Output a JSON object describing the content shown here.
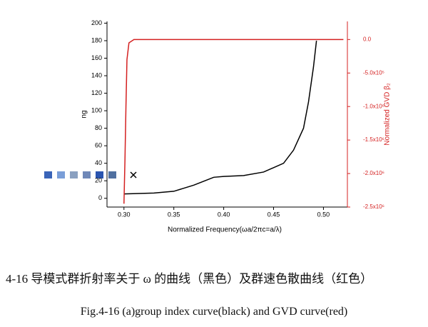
{
  "chart_data": {
    "type": "line",
    "xlabel": "Normalized Frequency(ωa/2πc=a/λ)",
    "ylabel": "ng",
    "y2label": "Normalized GVD β₂",
    "xlim": [
      0.283,
      0.524
    ],
    "xticks": [
      {
        "value": 0.3,
        "label": "0.30"
      },
      {
        "value": 0.35,
        "label": "0.35"
      },
      {
        "value": 0.4,
        "label": "0.40"
      },
      {
        "value": 0.45,
        "label": "0.45"
      },
      {
        "value": 0.5,
        "label": "0.50"
      }
    ],
    "ylim": [
      -10,
      202
    ],
    "yticks": [
      0,
      20,
      40,
      60,
      80,
      100,
      120,
      140,
      160,
      180,
      200
    ],
    "y2lim": [
      -2500000,
      270000
    ],
    "y2ticks": [
      {
        "value": 0,
        "label": "0.0"
      },
      {
        "value": -500000,
        "label": "-5.0x10⁵"
      },
      {
        "value": -1000000,
        "label": "-1.0x10⁶"
      },
      {
        "value": -1500000,
        "label": "-1.5x10⁶"
      },
      {
        "value": -2000000,
        "label": "-2.0x10⁶"
      },
      {
        "value": -2500000,
        "label": "-2.5x10⁶"
      }
    ],
    "y2color": "#d42020",
    "series": [
      {
        "name": "ng",
        "color": "#000000",
        "x": [
          0.3,
          0.33,
          0.35,
          0.37,
          0.39,
          0.4,
          0.42,
          0.44,
          0.46,
          0.47,
          0.48,
          0.485,
          0.49,
          0.493
        ],
        "values": [
          5,
          6,
          8,
          15,
          24,
          25,
          26,
          30,
          40,
          55,
          80,
          110,
          150,
          180
        ]
      },
      {
        "name": "GVD",
        "color": "#d42020",
        "axis": "y2",
        "x": [
          0.3,
          0.301,
          0.302,
          0.303,
          0.305,
          0.31,
          0.52
        ],
        "values": [
          -2450000,
          -1800000,
          -1000000,
          -300000,
          -50000,
          0,
          0
        ]
      }
    ]
  },
  "captions": [
    "4-16  导模式群折射率关于 ω 的曲线（黑色）及群速色散曲线（红色）",
    "Fig.4-16 (a)group index curve(black) and GVD curve(red)"
  ]
}
